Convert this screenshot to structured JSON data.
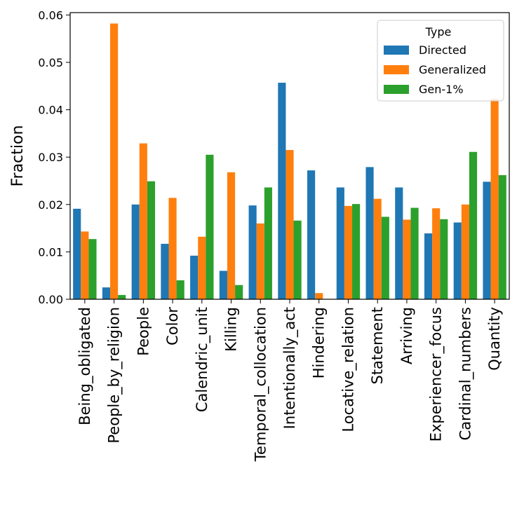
{
  "chart_data": {
    "type": "bar",
    "title": "",
    "xlabel": "",
    "ylabel": "Fraction",
    "ylim": [
      0,
      0.0605
    ],
    "yticks": [
      "0.00",
      "0.01",
      "0.02",
      "0.03",
      "0.04",
      "0.05",
      "0.06"
    ],
    "ytick_values": [
      0,
      0.01,
      0.02,
      0.03,
      0.04,
      0.05,
      0.06
    ],
    "grid": false,
    "legend": {
      "title": "Type",
      "placement": "top-right"
    },
    "categories": [
      "Being_obligated",
      "People_by_religion",
      "People",
      "Color",
      "Calendric_unit",
      "Killing",
      "Temporal_collocation",
      "Intentionally_act",
      "Hindering",
      "Locative_relation",
      "Statement",
      "Arriving",
      "Experiencer_focus",
      "Cardinal_numbers",
      "Quantity"
    ],
    "series": [
      {
        "name": "Directed",
        "color": "#1f77b4",
        "values": [
          0.0191,
          0.0025,
          0.02,
          0.0117,
          0.0092,
          0.006,
          0.0198,
          0.0457,
          0.0272,
          0.0236,
          0.0279,
          0.0236,
          0.0139,
          0.0162,
          0.0248
        ]
      },
      {
        "name": "Generalized",
        "color": "#ff7f0e",
        "values": [
          0.0143,
          0.0582,
          0.0329,
          0.0214,
          0.0132,
          0.0268,
          0.016,
          0.0315,
          0.0013,
          0.0197,
          0.0212,
          0.0168,
          0.0192,
          0.02,
          0.0423
        ]
      },
      {
        "name": "Gen-1%",
        "color": "#2ca02c",
        "values": [
          0.0127,
          0.0009,
          0.0249,
          0.004,
          0.0305,
          0.003,
          0.0236,
          0.0166,
          0.0,
          0.0201,
          0.0174,
          0.0193,
          0.0169,
          0.0311,
          0.0262
        ]
      }
    ]
  }
}
